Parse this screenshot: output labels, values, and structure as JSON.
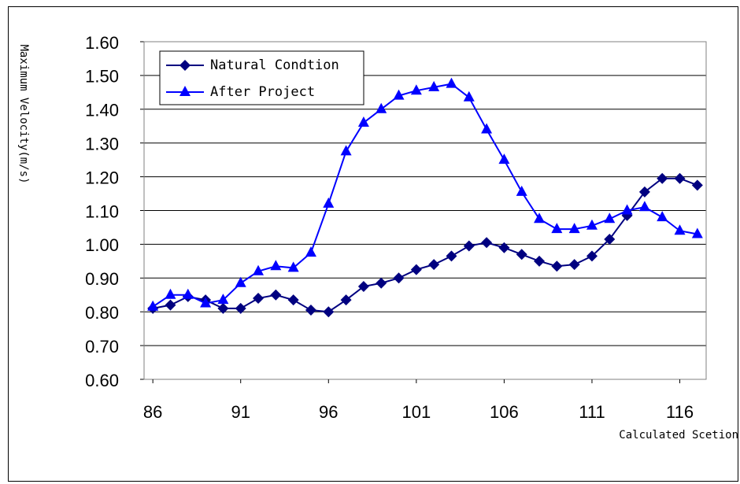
{
  "chart_data": {
    "type": "line",
    "y_label": "Maximum Velocity(m/s)",
    "x_label": "Calculated Scetion",
    "x": [
      86,
      87,
      88,
      89,
      90,
      91,
      92,
      93,
      94,
      95,
      96,
      97,
      98,
      99,
      100,
      101,
      102,
      103,
      104,
      105,
      106,
      107,
      108,
      109,
      110,
      111,
      112,
      113,
      114,
      115,
      116,
      117
    ],
    "series": [
      {
        "name": "Natural Condtion",
        "color": "#000080",
        "marker": "diamond",
        "values": [
          0.81,
          0.82,
          0.845,
          0.835,
          0.81,
          0.81,
          0.84,
          0.85,
          0.835,
          0.805,
          0.8,
          0.835,
          0.875,
          0.885,
          0.9,
          0.925,
          0.94,
          0.965,
          0.995,
          1.005,
          0.99,
          0.97,
          0.95,
          0.935,
          0.94,
          0.965,
          1.015,
          1.085,
          1.155,
          1.195,
          1.195,
          1.175
        ]
      },
      {
        "name": "After Project",
        "color": "#0000ff",
        "marker": "triangle",
        "values": [
          0.815,
          0.85,
          0.85,
          0.825,
          0.835,
          0.885,
          0.92,
          0.935,
          0.93,
          0.975,
          1.12,
          1.275,
          1.36,
          1.4,
          1.44,
          1.455,
          1.465,
          1.475,
          1.435,
          1.34,
          1.25,
          1.155,
          1.075,
          1.045,
          1.045,
          1.055,
          1.075,
          1.1,
          1.11,
          1.08,
          1.04,
          1.03
        ]
      }
    ],
    "xlim": [
      85.5,
      117.5
    ],
    "xticks": [
      86,
      91,
      96,
      101,
      106,
      111,
      116
    ],
    "ylim": [
      0.6,
      1.6
    ],
    "yticks": [
      {
        "value": 0.6,
        "label": "0.60"
      },
      {
        "value": 0.7,
        "label": "0.70"
      },
      {
        "value": 0.8,
        "label": "0.80"
      },
      {
        "value": 0.9,
        "label": "0.90"
      },
      {
        "value": 1.0,
        "label": "1.00"
      },
      {
        "value": 1.1,
        "label": "1.10"
      },
      {
        "value": 1.2,
        "label": "1.20"
      },
      {
        "value": 1.3,
        "label": "1.30"
      },
      {
        "value": 1.4,
        "label": "1.40"
      },
      {
        "value": 1.5,
        "label": "1.50"
      },
      {
        "value": 1.6,
        "label": "1.60"
      }
    ],
    "grid": true,
    "legend": "top-left"
  }
}
